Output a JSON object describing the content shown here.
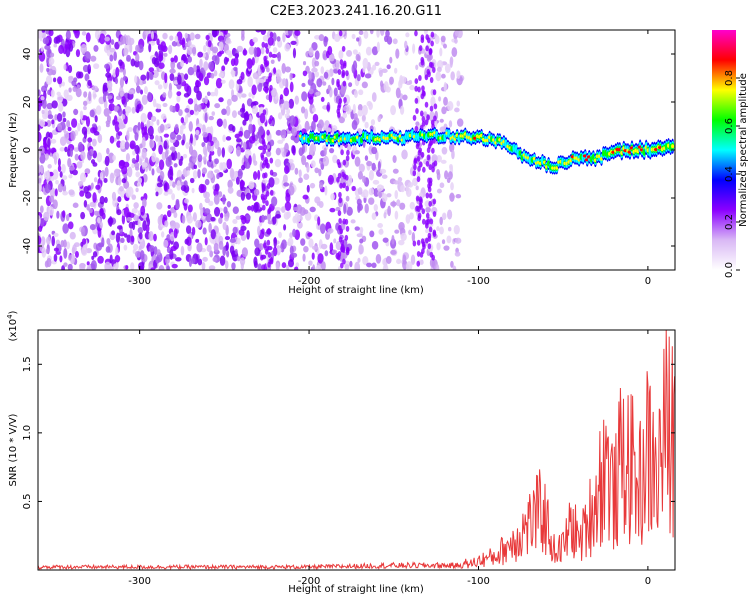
{
  "title": "C2E3.2023.241.16.20.G11",
  "chart_data": [
    {
      "type": "heatmap",
      "xlabel": "Height of straight line (km)",
      "ylabel": "Frequency (Hz)",
      "xlim": [
        -360,
        16
      ],
      "ylim": [
        -50,
        50
      ],
      "x_ticks": [
        -300,
        -200,
        -100,
        0
      ],
      "y_ticks": [
        -40,
        -20,
        0,
        20,
        40
      ],
      "colorbar": {
        "label": "Normalized spectral amplitude",
        "range": [
          0.0,
          1.0
        ],
        "ticks": [
          0.0,
          0.2,
          0.4,
          0.6,
          0.8
        ],
        "tick_labels": [
          "0.0",
          "0.2",
          "0.4",
          "0.6",
          "0.8"
        ],
        "colormap": [
          "#ffffff",
          "#d9b8f5",
          "#8b00ff",
          "#0000ff",
          "#00ffff",
          "#00ff00",
          "#ffff00",
          "#ff0000",
          "#ff00cc"
        ]
      },
      "noise_region": {
        "x_range": [
          -360,
          -110
        ],
        "note": "dense purple speckle noise"
      },
      "ridge": [
        {
          "x": -205,
          "y": 5,
          "amp": 0.42
        },
        {
          "x": -190,
          "y": 5,
          "amp": 0.46
        },
        {
          "x": -170,
          "y": 5,
          "amp": 0.48
        },
        {
          "x": -150,
          "y": 5,
          "amp": 0.5
        },
        {
          "x": -135,
          "y": 6,
          "amp": 0.45
        },
        {
          "x": -120,
          "y": 6,
          "amp": 0.45
        },
        {
          "x": -100,
          "y": 5,
          "amp": 0.62
        },
        {
          "x": -85,
          "y": 3,
          "amp": 0.55
        },
        {
          "x": -75,
          "y": -2,
          "amp": 0.5
        },
        {
          "x": -65,
          "y": -5,
          "amp": 0.52
        },
        {
          "x": -55,
          "y": -7,
          "amp": 0.55
        },
        {
          "x": -45,
          "y": -4,
          "amp": 0.6
        },
        {
          "x": -30,
          "y": -3,
          "amp": 0.65
        },
        {
          "x": -15,
          "y": 0,
          "amp": 0.8
        },
        {
          "x": 0,
          "y": 0,
          "amp": 0.85
        },
        {
          "x": 15,
          "y": 1,
          "amp": 0.8
        }
      ]
    },
    {
      "type": "line",
      "xlabel": "Height of straight line (km)",
      "ylabel": "SNR (10 * V/V)",
      "y_scale_label": "(x10^4)",
      "xlim": [
        -360,
        16
      ],
      "ylim": [
        0,
        1.75
      ],
      "x_ticks": [
        -300,
        -200,
        -100,
        0
      ],
      "y_ticks": [
        0.5,
        1.0,
        1.5
      ],
      "y_tick_labels": [
        "0.5",
        "1.0",
        "1.5"
      ],
      "color": "#e8393a",
      "series": [
        {
          "x": [
            -360,
            -300,
            -250,
            -200,
            -150,
            -110,
            -100,
            -90,
            -80,
            -70,
            -62,
            -55,
            -50,
            -45,
            -40,
            -35,
            -30,
            -25,
            -20,
            -15,
            -10,
            -5,
            0,
            5,
            10,
            16
          ],
          "values": [
            0.02,
            0.02,
            0.02,
            0.02,
            0.03,
            0.03,
            0.1,
            0.15,
            0.3,
            0.5,
            0.65,
            0.2,
            0.25,
            0.5,
            0.3,
            0.55,
            0.8,
            1.2,
            0.75,
            1.25,
            1.1,
            0.9,
            1.3,
            0.95,
            1.5,
            1.45
          ]
        }
      ]
    }
  ]
}
